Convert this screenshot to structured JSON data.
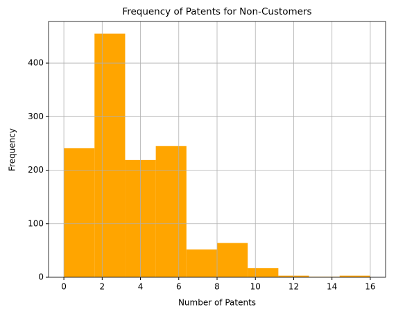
{
  "chart_data": {
    "type": "histogram",
    "title": "Frequency of Patents for Non-Customers",
    "xlabel": "Number of Patents",
    "ylabel": "Frequency",
    "bins": [
      0,
      1.6,
      3.2,
      4.8,
      6.4,
      8,
      9.6,
      11.2,
      12.8,
      14.4,
      16
    ],
    "values": [
      241,
      455,
      219,
      245,
      52,
      64,
      17,
      3,
      1,
      3
    ],
    "color": "#ffa500",
    "xlim": [
      -0.8,
      16.8
    ],
    "xticks": [
      0,
      2,
      4,
      6,
      8,
      10,
      12,
      14,
      16
    ],
    "ylim": [
      0,
      477.75
    ],
    "yticks": [
      0,
      100,
      200,
      300,
      400
    ],
    "grid": true
  }
}
